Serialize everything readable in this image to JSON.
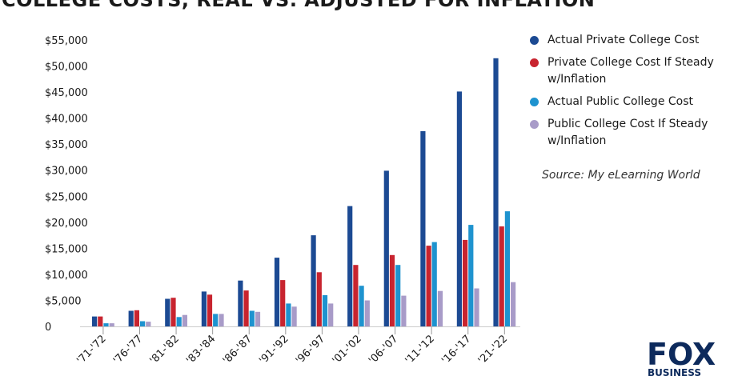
{
  "chart_data": {
    "type": "bar",
    "title": "COLLEGE COSTS, REAL VS. ADJUSTED FOR INFLATION",
    "xlabel": "",
    "ylabel": "",
    "categories": [
      "'71-'72",
      "'76-'77",
      "'81-'82",
      "'83-'84",
      "'86-'87",
      "'91-'92",
      "'96-'97",
      "'01-'02",
      "'06-'07",
      "'11-'12",
      "'16-'17",
      "'21-'22"
    ],
    "series": [
      {
        "name": "Actual Private College Cost",
        "color": "#1c4a93",
        "values": [
          1900,
          3000,
          5300,
          6700,
          8800,
          13200,
          17500,
          23100,
          29900,
          37500,
          45100,
          51500
        ]
      },
      {
        "name": "Private College Cost If Steady w/Inflation",
        "color": "#c8242f",
        "values": [
          1900,
          3100,
          5500,
          6100,
          6900,
          8900,
          10400,
          11800,
          13700,
          15500,
          16600,
          19200
        ]
      },
      {
        "name": "Actual Public College Cost",
        "color": "#1e93cf",
        "values": [
          600,
          1000,
          1800,
          2400,
          3000,
          4400,
          6000,
          7800,
          11800,
          16200,
          19500,
          22100
        ]
      },
      {
        "name": "Public College Cost If Steady w/Inflation",
        "color": "#a89bc8",
        "values": [
          600,
          900,
          2200,
          2400,
          2800,
          3800,
          4400,
          5000,
          5900,
          6800,
          7300,
          8500
        ]
      }
    ],
    "yticks": [
      "0",
      "$5,000",
      "$10,000",
      "$15,000",
      "$20,000",
      "$25,000",
      "$30,000",
      "$35,000",
      "$40,000",
      "$45,000",
      "$50,000",
      "$55,000"
    ],
    "ylim": [
      0,
      55000
    ],
    "grid": false,
    "legend_position": "right",
    "source_note": "Source: My eLearning World"
  },
  "legend": {
    "items": [
      {
        "label": "Actual Private College Cost",
        "color": "#1c4a93"
      },
      {
        "label": "Private College Cost If Steady w/Inflation",
        "color": "#c8242f"
      },
      {
        "label": "Actual Public College Cost",
        "color": "#1e93cf"
      },
      {
        "label": "Public College Cost If Steady w/Inflation",
        "color": "#a89bc8"
      }
    ]
  },
  "logo": {
    "text_top": "FOX",
    "text_bottom": "BUSINESS",
    "color": "#0d2a5c"
  }
}
